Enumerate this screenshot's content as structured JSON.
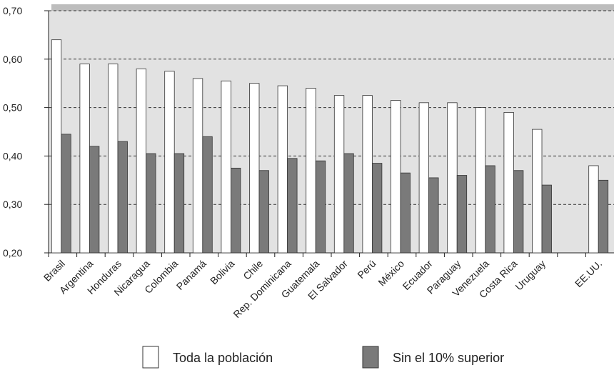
{
  "chart_data": {
    "type": "bar",
    "categories": [
      "Brasil",
      "Argentina",
      "Honduras",
      "Nicaragua",
      "Colombia",
      "Panamá",
      "Bolivia",
      "Chile",
      "Rep. Dominicana",
      "Guatemala",
      "El Salvador",
      "Perú",
      "México",
      "Ecuador",
      "Paraguay",
      "Venezuela",
      "Costa Rica",
      "Uruguay",
      null,
      "EE.UU."
    ],
    "series": [
      {
        "name": "Toda la población",
        "color": "#ffffff",
        "values": [
          0.64,
          0.59,
          0.59,
          0.58,
          0.575,
          0.56,
          0.555,
          0.55,
          0.545,
          0.54,
          0.525,
          0.525,
          0.515,
          0.51,
          0.51,
          0.5,
          0.49,
          0.455,
          null,
          0.38
        ]
      },
      {
        "name": "Sin el 10% superior",
        "color": "#7a7a7a",
        "values": [
          0.445,
          0.42,
          0.43,
          0.405,
          0.405,
          0.44,
          0.375,
          0.37,
          0.395,
          0.39,
          0.405,
          0.385,
          0.365,
          0.355,
          0.36,
          0.38,
          0.37,
          0.34,
          null,
          0.35
        ]
      }
    ],
    "ylim": [
      0.2,
      0.7
    ],
    "yticks": [
      {
        "value": 0.2,
        "label": "0,20"
      },
      {
        "value": 0.3,
        "label": "0,30"
      },
      {
        "value": 0.4,
        "label": "0,40"
      },
      {
        "value": 0.5,
        "label": "0,50"
      },
      {
        "value": 0.6,
        "label": "0,60"
      },
      {
        "value": 0.7,
        "label": "0,70"
      }
    ],
    "grid": true
  }
}
